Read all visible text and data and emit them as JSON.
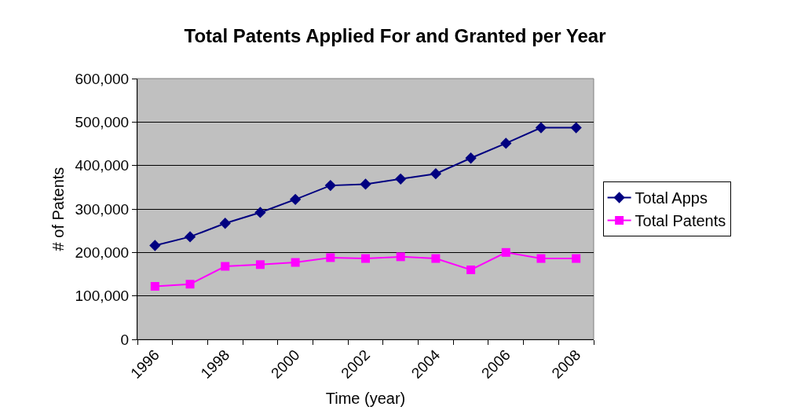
{
  "chart_data": {
    "type": "line",
    "title": "Total Patents Applied For and Granted per Year",
    "xlabel": "Time (year)",
    "ylabel": "# of Patents",
    "categories": [
      "1996",
      null,
      "1998",
      null,
      "2000",
      null,
      "2002",
      null,
      "2004",
      null,
      "2006",
      null,
      "2008"
    ],
    "series": [
      {
        "name": "Total Apps",
        "color": "#000080",
        "marker": "diamond",
        "values": [
          216000,
          236000,
          267000,
          292000,
          322000,
          354000,
          357000,
          369000,
          381000,
          417000,
          451000,
          487000,
          487000
        ]
      },
      {
        "name": "Total Patents",
        "color": "#ff00ff",
        "marker": "square",
        "values": [
          122000,
          127000,
          168000,
          172000,
          177000,
          188000,
          186000,
          190000,
          186000,
          160000,
          200000,
          186000,
          186000
        ]
      }
    ],
    "ylim": [
      0,
      600000
    ],
    "yticks": [
      {
        "value": 0,
        "label": "0"
      },
      {
        "value": 100000,
        "label": "100,000"
      },
      {
        "value": 200000,
        "label": "200,000"
      },
      {
        "value": 300000,
        "label": "300,000"
      },
      {
        "value": 400000,
        "label": "400,000"
      },
      {
        "value": 500000,
        "label": "500,000"
      },
      {
        "value": 600000,
        "label": "600,000"
      }
    ],
    "grid": "y",
    "legend": "right",
    "line_style": "solid"
  }
}
